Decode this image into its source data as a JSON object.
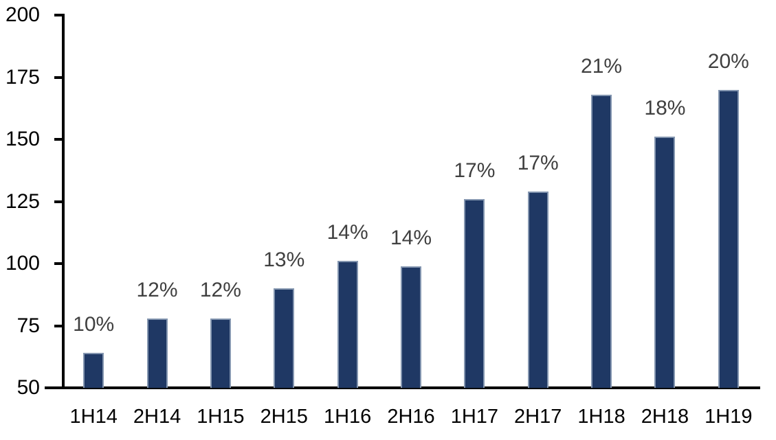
{
  "chart_data": {
    "type": "bar",
    "title": "",
    "xlabel": "",
    "ylabel": "",
    "categories": [
      "1H14",
      "2H14",
      "1H15",
      "2H15",
      "1H16",
      "2H16",
      "1H17",
      "2H17",
      "1H18",
      "2H18",
      "1H19"
    ],
    "values": [
      64,
      78,
      78,
      90,
      101,
      99,
      126,
      129,
      168,
      151,
      170
    ],
    "bar_labels": [
      "10%",
      "12%",
      "12%",
      "13%",
      "14%",
      "14%",
      "17%",
      "17%",
      "21%",
      "18%",
      "20%"
    ],
    "ylim": [
      50,
      200
    ],
    "yticks": [
      50,
      75,
      100,
      125,
      150,
      175,
      200
    ],
    "grid": false,
    "legend": null,
    "colors": {
      "bar_fill": "#1F3864",
      "bar_border": "#8496B0",
      "bar_label_text": "#404040",
      "axis_line": "#000000",
      "axis_text": "#000000",
      "background": "#FFFFFF"
    }
  }
}
